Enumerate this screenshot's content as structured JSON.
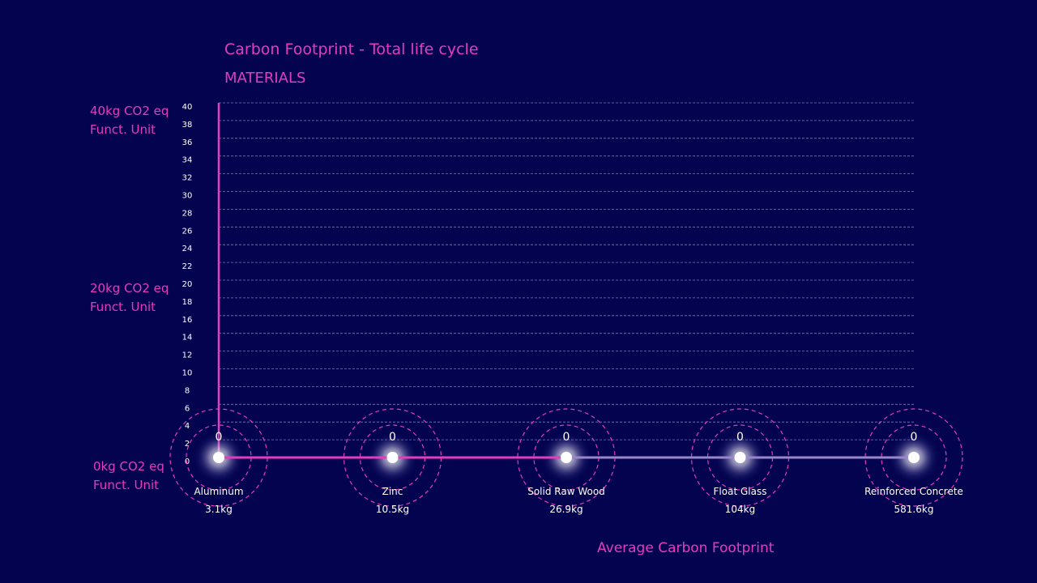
{
  "chart_data": {
    "type": "line",
    "title": "Carbon Footprint - Total life cycle",
    "subtitle": "MATERIALS",
    "y_axis_labels": [
      {
        "value": 40,
        "line1": "40kg CO2 eq",
        "line2": "Funct. Unit"
      },
      {
        "value": 20,
        "line1": "20kg CO2 eq",
        "line2": "Funct. Unit"
      },
      {
        "value": 0,
        "line1": "0kg CO2 eq",
        "line2": "Funct. Unit"
      }
    ],
    "ylim": [
      0,
      40
    ],
    "y_ticks": [
      0,
      2,
      4,
      6,
      8,
      10,
      12,
      14,
      16,
      18,
      20,
      22,
      24,
      26,
      28,
      30,
      32,
      34,
      36,
      38,
      40
    ],
    "grid": true,
    "categories": [
      "Aluminum",
      "Zinc",
      "Solid Raw Wood",
      "Float Glass",
      "Reinforced Concrete"
    ],
    "sublabels": [
      "3.1kg",
      "10.5kg",
      "26.9kg",
      "104kg",
      "581.6kg"
    ],
    "series": [
      {
        "values": [
          0,
          0,
          0,
          0,
          0
        ],
        "data_labels": [
          "0",
          "0",
          "0",
          "0",
          "0"
        ]
      }
    ],
    "legend": {
      "label": "Average Carbon Footprint",
      "position": "bottom-right"
    },
    "colors": {
      "background": "#030350",
      "accent": "#e63bbd",
      "axis": "#e040c0",
      "grid": "#8c8fc4",
      "gradient_start": "#1ed0e6",
      "gradient_end": "#e63bbd",
      "text": "#ffffff"
    }
  }
}
